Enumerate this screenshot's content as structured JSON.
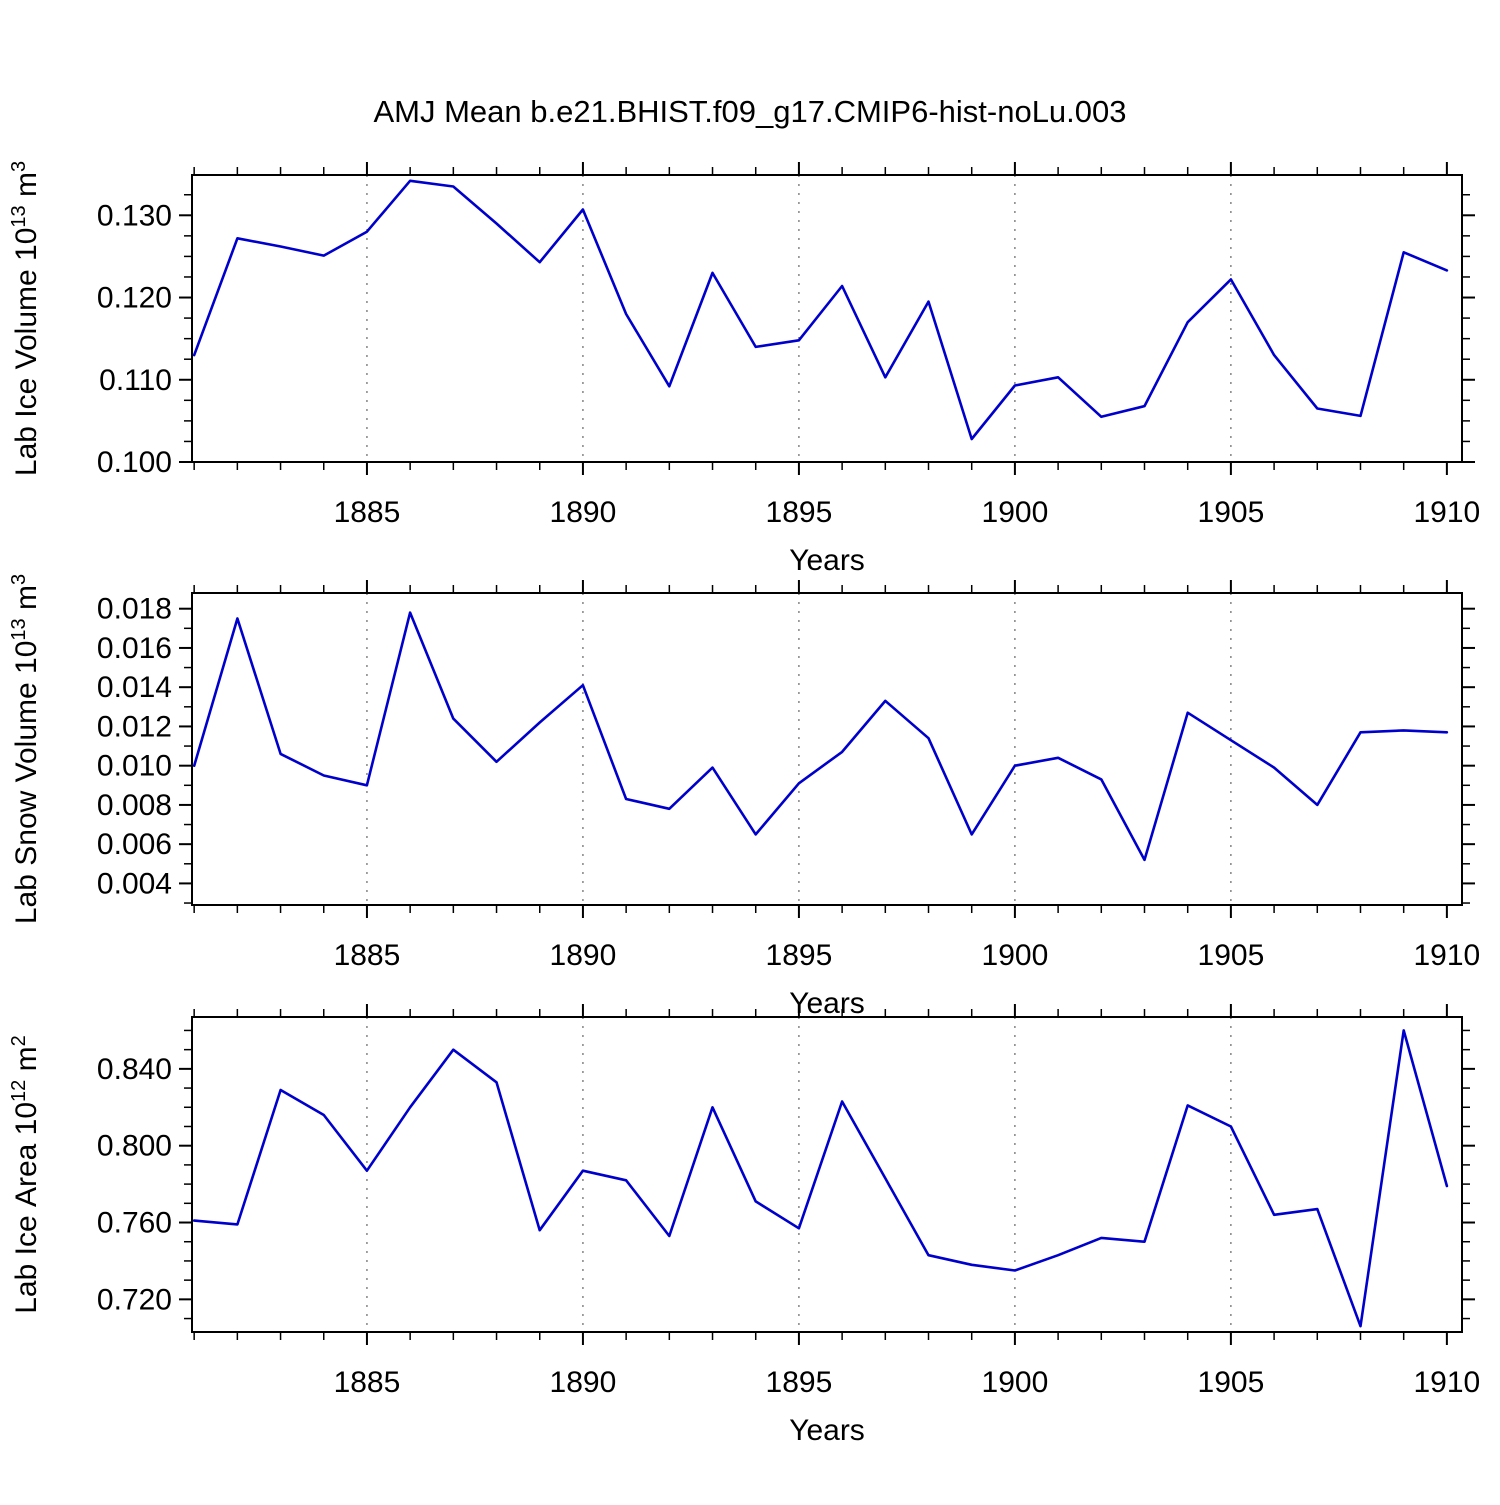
{
  "title": "AMJ Mean b.e21.BHIST.f09_g17.CMIP6-hist-noLu.003",
  "style": {
    "line_color": "#0000CC",
    "axis_color": "#000000",
    "grid_color": "#666666",
    "background": "#FFFFFF",
    "text_color": "#000000"
  },
  "chart_data": [
    {
      "type": "line",
      "name": "lab-ice-volume",
      "ylabel": "Lab Ice Volume 10^{13} m^{3}",
      "xlabel": "Years",
      "years": [
        1881,
        1882,
        1883,
        1884,
        1885,
        1886,
        1887,
        1888,
        1889,
        1890,
        1891,
        1892,
        1893,
        1894,
        1895,
        1896,
        1897,
        1898,
        1899,
        1900,
        1901,
        1902,
        1903,
        1904,
        1905,
        1906,
        1907,
        1908,
        1909,
        1910
      ],
      "values": [
        0.113,
        0.1272,
        0.1262,
        0.1251,
        0.128,
        0.1342,
        0.1335,
        0.129,
        0.1243,
        0.1307,
        0.118,
        0.1092,
        0.123,
        0.114,
        0.1148,
        0.1214,
        0.1103,
        0.1195,
        0.1028,
        0.1093,
        0.1103,
        0.1055,
        0.1068,
        0.117,
        0.1222,
        0.113,
        0.1065,
        0.1056,
        0.1255,
        0.1233
      ],
      "xlim": [
        1880.95,
        1910.35
      ],
      "ylim": [
        0.1,
        0.1349
      ],
      "xticks": [
        1885,
        1890,
        1895,
        1900,
        1905,
        1910
      ],
      "xtick_labels": [
        "1885",
        "1890",
        "1895",
        "1900",
        "1905",
        "1910"
      ],
      "yticks": [
        0.1,
        0.11,
        0.12,
        0.13
      ],
      "ytick_labels": [
        "0.100",
        "0.110",
        "0.120",
        "0.130"
      ],
      "y_minor_step": 0.0025,
      "x_minor_step": 1,
      "grid_x": [
        1885,
        1890,
        1895,
        1900,
        1905
      ],
      "grid_style": "dashed-vertical",
      "legend": "none"
    },
    {
      "type": "line",
      "name": "lab-snow-volume",
      "ylabel": "Lab Snow Volume 10^{13} m^{3}",
      "xlabel": "Years",
      "years": [
        1881,
        1882,
        1883,
        1884,
        1885,
        1886,
        1887,
        1888,
        1889,
        1890,
        1891,
        1892,
        1893,
        1894,
        1895,
        1896,
        1897,
        1898,
        1899,
        1900,
        1901,
        1902,
        1903,
        1904,
        1905,
        1906,
        1907,
        1908,
        1909,
        1910
      ],
      "values": [
        0.01,
        0.0175,
        0.0106,
        0.0095,
        0.009,
        0.0178,
        0.0124,
        0.0102,
        0.0122,
        0.0141,
        0.0083,
        0.0078,
        0.0099,
        0.0065,
        0.0091,
        0.0107,
        0.0133,
        0.0114,
        0.0065,
        0.01,
        0.0104,
        0.0093,
        0.0052,
        0.0127,
        0.0113,
        0.0099,
        0.008,
        0.0117,
        0.0118,
        0.0117
      ],
      "xlim": [
        1880.95,
        1910.35
      ],
      "ylim": [
        0.0029,
        0.0188
      ],
      "xticks": [
        1885,
        1890,
        1895,
        1900,
        1905,
        1910
      ],
      "xtick_labels": [
        "1885",
        "1890",
        "1895",
        "1900",
        "1905",
        "1910"
      ],
      "yticks": [
        0.004,
        0.006,
        0.008,
        0.01,
        0.012,
        0.014,
        0.016,
        0.018
      ],
      "ytick_labels": [
        "0.004",
        "0.006",
        "0.008",
        "0.010",
        "0.012",
        "0.014",
        "0.016",
        "0.018"
      ],
      "y_minor_step": 0.001,
      "x_minor_step": 1,
      "grid_x": [
        1885,
        1890,
        1895,
        1900,
        1905
      ],
      "grid_style": "dashed-vertical",
      "legend": "none"
    },
    {
      "type": "line",
      "name": "lab-ice-area",
      "ylabel": "Lab Ice Area 10^{12} m^{2}",
      "xlabel": "Years",
      "years": [
        1881,
        1882,
        1883,
        1884,
        1885,
        1886,
        1887,
        1888,
        1889,
        1890,
        1891,
        1892,
        1893,
        1894,
        1895,
        1896,
        1897,
        1898,
        1899,
        1900,
        1901,
        1902,
        1903,
        1904,
        1905,
        1906,
        1907,
        1908,
        1909,
        1910
      ],
      "values": [
        0.761,
        0.759,
        0.829,
        0.816,
        0.787,
        0.82,
        0.85,
        0.833,
        0.756,
        0.787,
        0.782,
        0.753,
        0.82,
        0.771,
        0.757,
        0.823,
        0.783,
        0.743,
        0.738,
        0.735,
        0.743,
        0.752,
        0.75,
        0.821,
        0.81,
        0.764,
        0.767,
        0.706,
        0.86,
        0.779
      ],
      "xlim": [
        1880.95,
        1910.35
      ],
      "ylim": [
        0.703,
        0.867
      ],
      "xticks": [
        1885,
        1890,
        1895,
        1900,
        1905,
        1910
      ],
      "xtick_labels": [
        "1885",
        "1890",
        "1895",
        "1900",
        "1905",
        "1910"
      ],
      "yticks": [
        0.72,
        0.76,
        0.8,
        0.84
      ],
      "ytick_labels": [
        "0.720",
        "0.760",
        "0.800",
        "0.840"
      ],
      "y_minor_step": 0.01,
      "x_minor_step": 1,
      "grid_x": [
        1885,
        1890,
        1895,
        1900,
        1905
      ],
      "grid_style": "dashed-vertical",
      "legend": "none"
    }
  ]
}
